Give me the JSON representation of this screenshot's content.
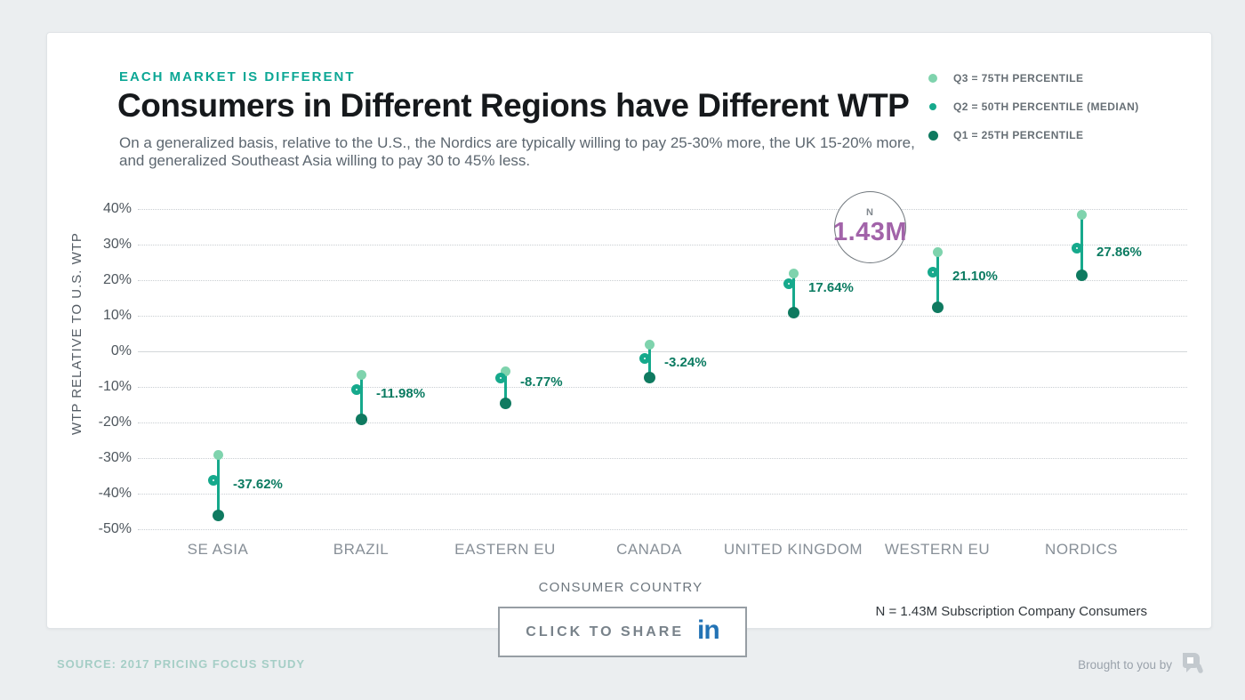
{
  "header": {
    "kicker": "EACH MARKET IS DIFFERENT",
    "title": "Consumers in Different Regions have Different WTP",
    "subtitle_line1": "On a generalized basis, relative to the U.S., the Nordics are typically willing to pay 25-30% more, the UK 15-20% more,",
    "subtitle_line2": "and generalized Southeast Asia willing to pay 30 to 45% less."
  },
  "legend": {
    "items": [
      {
        "label": "Q3 = 75TH PERCENTILE",
        "marker": "filled-dot-light-green"
      },
      {
        "label": "Q2 = 50TH PERCENTILE (MEDIAN)",
        "marker": "open-ring-teal"
      },
      {
        "label": "Q1 = 25TH PERCENTILE",
        "marker": "filled-dot-dark-green"
      }
    ]
  },
  "chart_data": {
    "type": "scatter",
    "subtype": "quartile-range-dot-plot",
    "title": "Consumers in Different Regions have Different WTP",
    "xlabel": "CONSUMER COUNTRY",
    "ylabel": "WTP RELATIVE TO U.S. WTP",
    "ylim": [
      -50,
      40
    ],
    "yticks": [
      40,
      30,
      20,
      10,
      0,
      -10,
      -20,
      -30,
      -40,
      -50
    ],
    "ytick_suffix": "%",
    "grid": "dotted-horizontal-with-solid-zero-line",
    "legend_position": "top-right",
    "categories": [
      "SE ASIA",
      "BRAZIL",
      "EASTERN EU",
      "CANADA",
      "UNITED KINGDOM",
      "WESTERN EU",
      "NORDICS"
    ],
    "series": [
      {
        "name": "Q3 = 75TH PERCENTILE",
        "values": [
          -29,
          -6.5,
          -5.5,
          2,
          22,
          28,
          38.5
        ]
      },
      {
        "name": "Q2 = 50TH PERCENTILE (MEDIAN)",
        "values": [
          -37.62,
          -11.98,
          -8.77,
          -3.24,
          17.64,
          21.1,
          27.86
        ],
        "labels": [
          "-37.62%",
          "-11.98%",
          "-8.77%",
          "-3.24%",
          "17.64%",
          "21.10%",
          "27.86%"
        ]
      },
      {
        "name": "Q1 = 25TH PERCENTILE",
        "values": [
          -46,
          -19,
          -14.5,
          -7.3,
          11,
          12.4,
          21.5
        ]
      }
    ],
    "annotation": {
      "label": "N",
      "value": "1.43M"
    }
  },
  "notes": {
    "sample": "N = 1.43M Subscription Company Consumers"
  },
  "share": {
    "label": "CLICK TO SHARE",
    "icon": "linkedin-icon",
    "glyph": "in"
  },
  "footer": {
    "source": "SOURCE: 2017 PRICING FOCUS STUDY",
    "brought": "Brought to you by"
  },
  "colors": {
    "accent_teal": "#0CA795",
    "q3_green": "#7FD3AD",
    "q2_teal": "#16A98C",
    "q1_green": "#0F7A60",
    "value_label": "#0B7B61",
    "n_value_purple": "#A263A9",
    "linkedin_blue": "#2373B5",
    "source_teal": "#A5CEC6"
  }
}
